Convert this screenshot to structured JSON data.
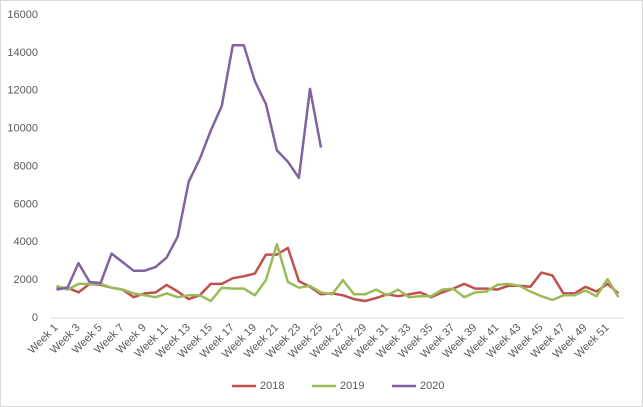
{
  "chart_data": {
    "type": "line",
    "categories": [
      "Week 1",
      null,
      "Week 3",
      null,
      "Week 5",
      null,
      "Week 7",
      null,
      "Week 9",
      null,
      "Week 11",
      null,
      "Week 13",
      null,
      "Week 15",
      null,
      "Week 17",
      null,
      "Week 19",
      null,
      "Week 21",
      null,
      "Week 23",
      null,
      "Week 25",
      null,
      "Week 27",
      null,
      "Week 29",
      null,
      "Week 31",
      null,
      "Week 33",
      null,
      "Week 35",
      null,
      "Week 37",
      null,
      "Week 39",
      null,
      "Week 41",
      null,
      "Week 43",
      null,
      "Week 45",
      null,
      "Week 47",
      null,
      "Week 49",
      null,
      "Week 51",
      null
    ],
    "series": [
      {
        "name": "2018",
        "color": "#c0504d",
        "values": [
          1600,
          1600,
          1350,
          1800,
          1750,
          1600,
          1500,
          1100,
          1300,
          1350,
          1750,
          1400,
          1000,
          1200,
          1800,
          1800,
          2100,
          2200,
          2350,
          3350,
          3350,
          3700,
          1950,
          1650,
          1250,
          1300,
          1200,
          1000,
          900,
          1050,
          1250,
          1150,
          1250,
          1350,
          1100,
          1350,
          1550,
          1800,
          1550,
          1550,
          1500,
          1700,
          1700,
          1650,
          2400,
          2250,
          1300,
          1300,
          1650,
          1400,
          1800,
          1300
        ]
      },
      {
        "name": "2019",
        "color": "#9bbb59",
        "values": [
          1700,
          1500,
          1800,
          1800,
          1800,
          1600,
          1500,
          1300,
          1200,
          1100,
          1300,
          1100,
          1200,
          1200,
          900,
          1600,
          1550,
          1550,
          1200,
          2000,
          3900,
          1900,
          1600,
          1700,
          1350,
          1250,
          2000,
          1250,
          1250,
          1500,
          1200,
          1500,
          1100,
          1150,
          1150,
          1500,
          1550,
          1100,
          1350,
          1400,
          1750,
          1800,
          1700,
          1400,
          1150,
          950,
          1200,
          1200,
          1450,
          1150,
          2050,
          1100
        ]
      },
      {
        "name": "2020",
        "color": "#8064a2",
        "values": [
          1500,
          1600,
          2900,
          1900,
          1850,
          3400,
          2950,
          2500,
          2500,
          2700,
          3200,
          4300,
          7200,
          8400,
          9900,
          11200,
          14400,
          14400,
          12500,
          11300,
          8850,
          8250,
          7400,
          12100,
          9000,
          null,
          null,
          null,
          null,
          null,
          null,
          null,
          null,
          null,
          null,
          null,
          null,
          null,
          null,
          null,
          null,
          null,
          null,
          null,
          null,
          null,
          null,
          null,
          null,
          null,
          null,
          null
        ]
      }
    ],
    "ylim": [
      0,
      16000
    ],
    "yticks": [
      0,
      2000,
      4000,
      6000,
      8000,
      10000,
      12000,
      14000,
      16000
    ],
    "grid": false,
    "legend": "bottom"
  }
}
